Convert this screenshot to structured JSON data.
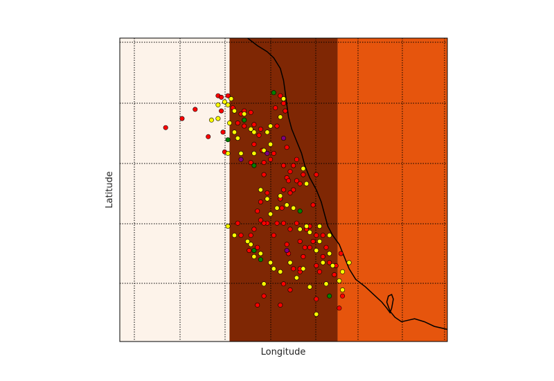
{
  "chart_data": {
    "type": "scatter",
    "xlabel": "Longitude",
    "ylabel": "Latitude",
    "xlim": [
      0,
      1
    ],
    "ylim": [
      0,
      1
    ],
    "grid": true,
    "tick_labels_shown": false,
    "background_bands": [
      {
        "x0": 0.0,
        "x1": 0.335,
        "color": "#fdf3ea"
      },
      {
        "x0": 0.335,
        "x1": 0.665,
        "color": "#7f2704"
      },
      {
        "x0": 0.665,
        "x1": 1.0,
        "color": "#e6550d"
      }
    ],
    "coastline_color": "#000000",
    "coastline": [
      [
        0.39,
        1.0
      ],
      [
        0.42,
        0.975
      ],
      [
        0.45,
        0.955
      ],
      [
        0.47,
        0.935
      ],
      [
        0.49,
        0.9
      ],
      [
        0.5,
        0.86
      ],
      [
        0.505,
        0.82
      ],
      [
        0.51,
        0.78
      ],
      [
        0.515,
        0.74
      ],
      [
        0.525,
        0.7
      ],
      [
        0.54,
        0.66
      ],
      [
        0.555,
        0.62
      ],
      [
        0.565,
        0.58
      ],
      [
        0.58,
        0.54
      ],
      [
        0.6,
        0.5
      ],
      [
        0.615,
        0.46
      ],
      [
        0.625,
        0.42
      ],
      [
        0.635,
        0.38
      ],
      [
        0.65,
        0.35
      ],
      [
        0.67,
        0.32
      ],
      [
        0.685,
        0.28
      ],
      [
        0.7,
        0.24
      ],
      [
        0.72,
        0.205
      ],
      [
        0.75,
        0.18
      ],
      [
        0.78,
        0.15
      ],
      [
        0.8,
        0.13
      ],
      [
        0.815,
        0.11
      ],
      [
        0.825,
        0.095
      ],
      [
        0.83,
        0.11
      ],
      [
        0.835,
        0.14
      ],
      [
        0.83,
        0.155
      ],
      [
        0.82,
        0.15
      ],
      [
        0.815,
        0.13
      ],
      [
        0.825,
        0.1
      ],
      [
        0.84,
        0.08
      ],
      [
        0.86,
        0.065
      ],
      [
        0.88,
        0.07
      ],
      [
        0.9,
        0.075
      ],
      [
        0.93,
        0.065
      ],
      [
        0.96,
        0.05
      ],
      [
        1.0,
        0.04
      ]
    ],
    "series": [
      {
        "color": "#ff0000",
        "points": [
          [
            0.14,
            0.705
          ],
          [
            0.19,
            0.735
          ],
          [
            0.23,
            0.765
          ],
          [
            0.27,
            0.675
          ],
          [
            0.3,
            0.81
          ],
          [
            0.31,
            0.805
          ],
          [
            0.31,
            0.76
          ],
          [
            0.315,
            0.69
          ],
          [
            0.32,
            0.625
          ],
          [
            0.33,
            0.81
          ],
          [
            0.345,
            0.77
          ],
          [
            0.36,
            0.72
          ],
          [
            0.37,
            0.75
          ],
          [
            0.38,
            0.76
          ],
          [
            0.4,
            0.755
          ],
          [
            0.41,
            0.715
          ],
          [
            0.425,
            0.68
          ],
          [
            0.435,
            0.63
          ],
          [
            0.44,
            0.55
          ],
          [
            0.45,
            0.49
          ],
          [
            0.46,
            0.6
          ],
          [
            0.47,
            0.62
          ],
          [
            0.475,
            0.77
          ],
          [
            0.48,
            0.71
          ],
          [
            0.49,
            0.81
          ],
          [
            0.5,
            0.785
          ],
          [
            0.505,
            0.76
          ],
          [
            0.51,
            0.64
          ],
          [
            0.52,
            0.56
          ],
          [
            0.53,
            0.5
          ],
          [
            0.54,
            0.6
          ],
          [
            0.55,
            0.52
          ],
          [
            0.56,
            0.55
          ],
          [
            0.45,
            0.39
          ],
          [
            0.43,
            0.4
          ],
          [
            0.4,
            0.35
          ],
          [
            0.395,
            0.3
          ],
          [
            0.42,
            0.31
          ],
          [
            0.44,
            0.39
          ],
          [
            0.47,
            0.35
          ],
          [
            0.48,
            0.39
          ],
          [
            0.5,
            0.39
          ],
          [
            0.51,
            0.32
          ],
          [
            0.515,
            0.29
          ],
          [
            0.52,
            0.37
          ],
          [
            0.54,
            0.39
          ],
          [
            0.55,
            0.33
          ],
          [
            0.55,
            0.23
          ],
          [
            0.56,
            0.28
          ],
          [
            0.57,
            0.37
          ],
          [
            0.58,
            0.31
          ],
          [
            0.59,
            0.33
          ],
          [
            0.6,
            0.35
          ],
          [
            0.61,
            0.23
          ],
          [
            0.62,
            0.35
          ],
          [
            0.6,
            0.25
          ],
          [
            0.63,
            0.31
          ],
          [
            0.64,
            0.26
          ],
          [
            0.655,
            0.22
          ],
          [
            0.66,
            0.25
          ],
          [
            0.55,
            0.24
          ],
          [
            0.53,
            0.24
          ],
          [
            0.49,
            0.47
          ],
          [
            0.495,
            0.44
          ],
          [
            0.5,
            0.5
          ],
          [
            0.5,
            0.58
          ],
          [
            0.51,
            0.54
          ],
          [
            0.515,
            0.53
          ],
          [
            0.52,
            0.49
          ],
          [
            0.53,
            0.58
          ],
          [
            0.54,
            0.53
          ],
          [
            0.41,
            0.65
          ],
          [
            0.43,
            0.7
          ],
          [
            0.38,
            0.71
          ],
          [
            0.4,
            0.59
          ],
          [
            0.44,
            0.59
          ],
          [
            0.5,
            0.19
          ],
          [
            0.52,
            0.17
          ],
          [
            0.49,
            0.12
          ],
          [
            0.42,
            0.12
          ],
          [
            0.44,
            0.15
          ],
          [
            0.58,
            0.38
          ],
          [
            0.62,
            0.28
          ],
          [
            0.675,
            0.29
          ],
          [
            0.68,
            0.15
          ],
          [
            0.67,
            0.11
          ],
          [
            0.6,
            0.14
          ],
          [
            0.59,
            0.45
          ],
          [
            0.6,
            0.55
          ],
          [
            0.43,
            0.46
          ],
          [
            0.42,
            0.43
          ],
          [
            0.41,
            0.37
          ],
          [
            0.36,
            0.39
          ],
          [
            0.37,
            0.35
          ],
          [
            0.565,
            0.31
          ]
        ]
      },
      {
        "color": "#ffff00",
        "points": [
          [
            0.3,
            0.78
          ],
          [
            0.32,
            0.79
          ],
          [
            0.33,
            0.78
          ],
          [
            0.28,
            0.73
          ],
          [
            0.3,
            0.735
          ],
          [
            0.335,
            0.72
          ],
          [
            0.35,
            0.69
          ],
          [
            0.36,
            0.67
          ],
          [
            0.38,
            0.75
          ],
          [
            0.4,
            0.7
          ],
          [
            0.41,
            0.69
          ],
          [
            0.45,
            0.69
          ],
          [
            0.46,
            0.71
          ],
          [
            0.49,
            0.74
          ],
          [
            0.5,
            0.8
          ],
          [
            0.33,
            0.62
          ],
          [
            0.37,
            0.62
          ],
          [
            0.45,
            0.47
          ],
          [
            0.43,
            0.5
          ],
          [
            0.46,
            0.42
          ],
          [
            0.48,
            0.44
          ],
          [
            0.49,
            0.48
          ],
          [
            0.51,
            0.45
          ],
          [
            0.53,
            0.44
          ],
          [
            0.56,
            0.57
          ],
          [
            0.57,
            0.52
          ],
          [
            0.55,
            0.37
          ],
          [
            0.57,
            0.38
          ],
          [
            0.58,
            0.36
          ],
          [
            0.6,
            0.3
          ],
          [
            0.61,
            0.33
          ],
          [
            0.64,
            0.29
          ],
          [
            0.65,
            0.25
          ],
          [
            0.64,
            0.35
          ],
          [
            0.61,
            0.38
          ],
          [
            0.33,
            0.38
          ],
          [
            0.35,
            0.35
          ],
          [
            0.39,
            0.33
          ],
          [
            0.4,
            0.32
          ],
          [
            0.41,
            0.28
          ],
          [
            0.43,
            0.29
          ],
          [
            0.46,
            0.26
          ],
          [
            0.47,
            0.24
          ],
          [
            0.44,
            0.19
          ],
          [
            0.49,
            0.23
          ],
          [
            0.56,
            0.24
          ],
          [
            0.58,
            0.18
          ],
          [
            0.54,
            0.21
          ],
          [
            0.52,
            0.26
          ],
          [
            0.6,
            0.09
          ],
          [
            0.62,
            0.26
          ],
          [
            0.63,
            0.19
          ],
          [
            0.67,
            0.2
          ],
          [
            0.68,
            0.23
          ],
          [
            0.68,
            0.17
          ],
          [
            0.7,
            0.26
          ],
          [
            0.41,
            0.62
          ],
          [
            0.44,
            0.63
          ],
          [
            0.38,
            0.73
          ],
          [
            0.35,
            0.76
          ],
          [
            0.34,
            0.8
          ],
          [
            0.46,
            0.65
          ]
        ]
      },
      {
        "color": "#008000",
        "points": [
          [
            0.33,
            0.665
          ],
          [
            0.38,
            0.73
          ],
          [
            0.41,
            0.58
          ],
          [
            0.47,
            0.82
          ],
          [
            0.55,
            0.43
          ],
          [
            0.41,
            0.3
          ],
          [
            0.43,
            0.27
          ],
          [
            0.64,
            0.15
          ]
        ]
      },
      {
        "color": "#800080",
        "points": [
          [
            0.37,
            0.6
          ],
          [
            0.45,
            0.62
          ],
          [
            0.51,
            0.3
          ],
          [
            0.5,
            0.67
          ]
        ]
      }
    ]
  }
}
